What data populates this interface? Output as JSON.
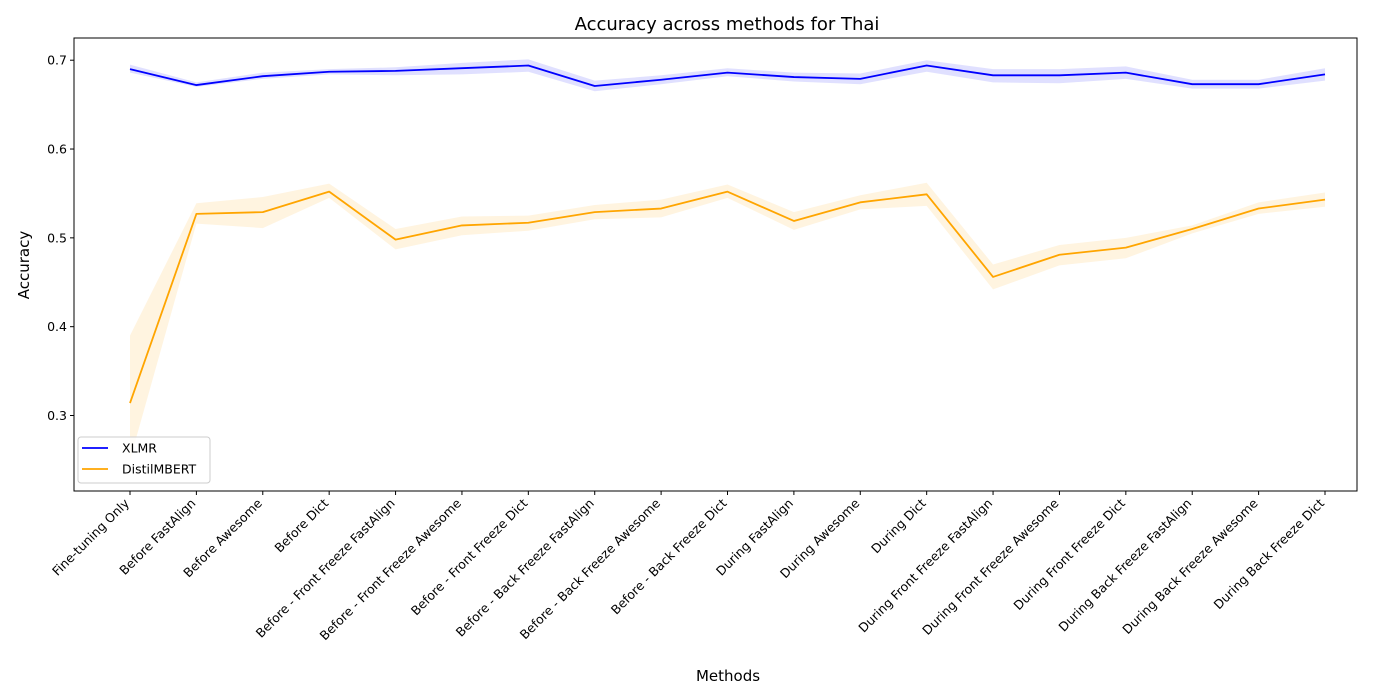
{
  "chart_data": {
    "type": "line",
    "title": "Accuracy across methods for Thai",
    "xlabel": "Methods",
    "ylabel": "Accuracy",
    "ylim": [
      0.215,
      0.725
    ],
    "yticks": [
      0.3,
      0.4,
      0.5,
      0.6,
      0.7
    ],
    "grid": false,
    "legend_position": "lower-left",
    "categories": [
      "Fine-tuning Only",
      "Before FastAlign",
      "Before Awesome",
      "Before Dict",
      "Before - Front Freeze FastAlign",
      "Before - Front Freeze Awesome",
      "Before - Front Freeze Dict",
      "Before - Back Freeze FastAlign",
      "Before - Back Freeze Awesome",
      "Before - Back Freeze Dict",
      "During FastAlign",
      "During Awesome",
      "During Dict",
      "During Front Freeze FastAlign",
      "During Front Freeze Awesome",
      "During Front Freeze Dict",
      "During Back Freeze FastAlign",
      "During Back Freeze Awesome",
      "During Back Freeze Dict"
    ],
    "series": [
      {
        "name": "XLMR",
        "color": "#0000ff",
        "band_color": "#0000ff",
        "values": [
          0.69,
          0.672,
          0.682,
          0.687,
          0.688,
          0.691,
          0.694,
          0.671,
          0.678,
          0.686,
          0.681,
          0.679,
          0.694,
          0.683,
          0.683,
          0.686,
          0.673,
          0.673,
          0.684
        ],
        "lower": [
          0.686,
          0.67,
          0.679,
          0.684,
          0.683,
          0.684,
          0.687,
          0.665,
          0.673,
          0.682,
          0.676,
          0.673,
          0.687,
          0.675,
          0.674,
          0.679,
          0.668,
          0.668,
          0.677
        ],
        "upper": [
          0.695,
          0.675,
          0.686,
          0.69,
          0.692,
          0.697,
          0.701,
          0.677,
          0.683,
          0.691,
          0.686,
          0.685,
          0.7,
          0.69,
          0.69,
          0.693,
          0.678,
          0.678,
          0.691
        ]
      },
      {
        "name": "DistilMBERT",
        "color": "#ffa500",
        "band_color": "#ffa500",
        "values": [
          0.314,
          0.527,
          0.529,
          0.552,
          0.498,
          0.514,
          0.517,
          0.529,
          0.533,
          0.552,
          0.519,
          0.54,
          0.549,
          0.456,
          0.481,
          0.489,
          0.51,
          0.533,
          0.543
        ],
        "lower": [
          0.25,
          0.516,
          0.511,
          0.545,
          0.487,
          0.503,
          0.508,
          0.521,
          0.523,
          0.545,
          0.509,
          0.532,
          0.536,
          0.442,
          0.469,
          0.477,
          0.505,
          0.527,
          0.535
        ],
        "upper": [
          0.39,
          0.539,
          0.546,
          0.561,
          0.51,
          0.524,
          0.525,
          0.537,
          0.543,
          0.56,
          0.529,
          0.548,
          0.562,
          0.47,
          0.492,
          0.5,
          0.514,
          0.54,
          0.551
        ]
      }
    ]
  }
}
